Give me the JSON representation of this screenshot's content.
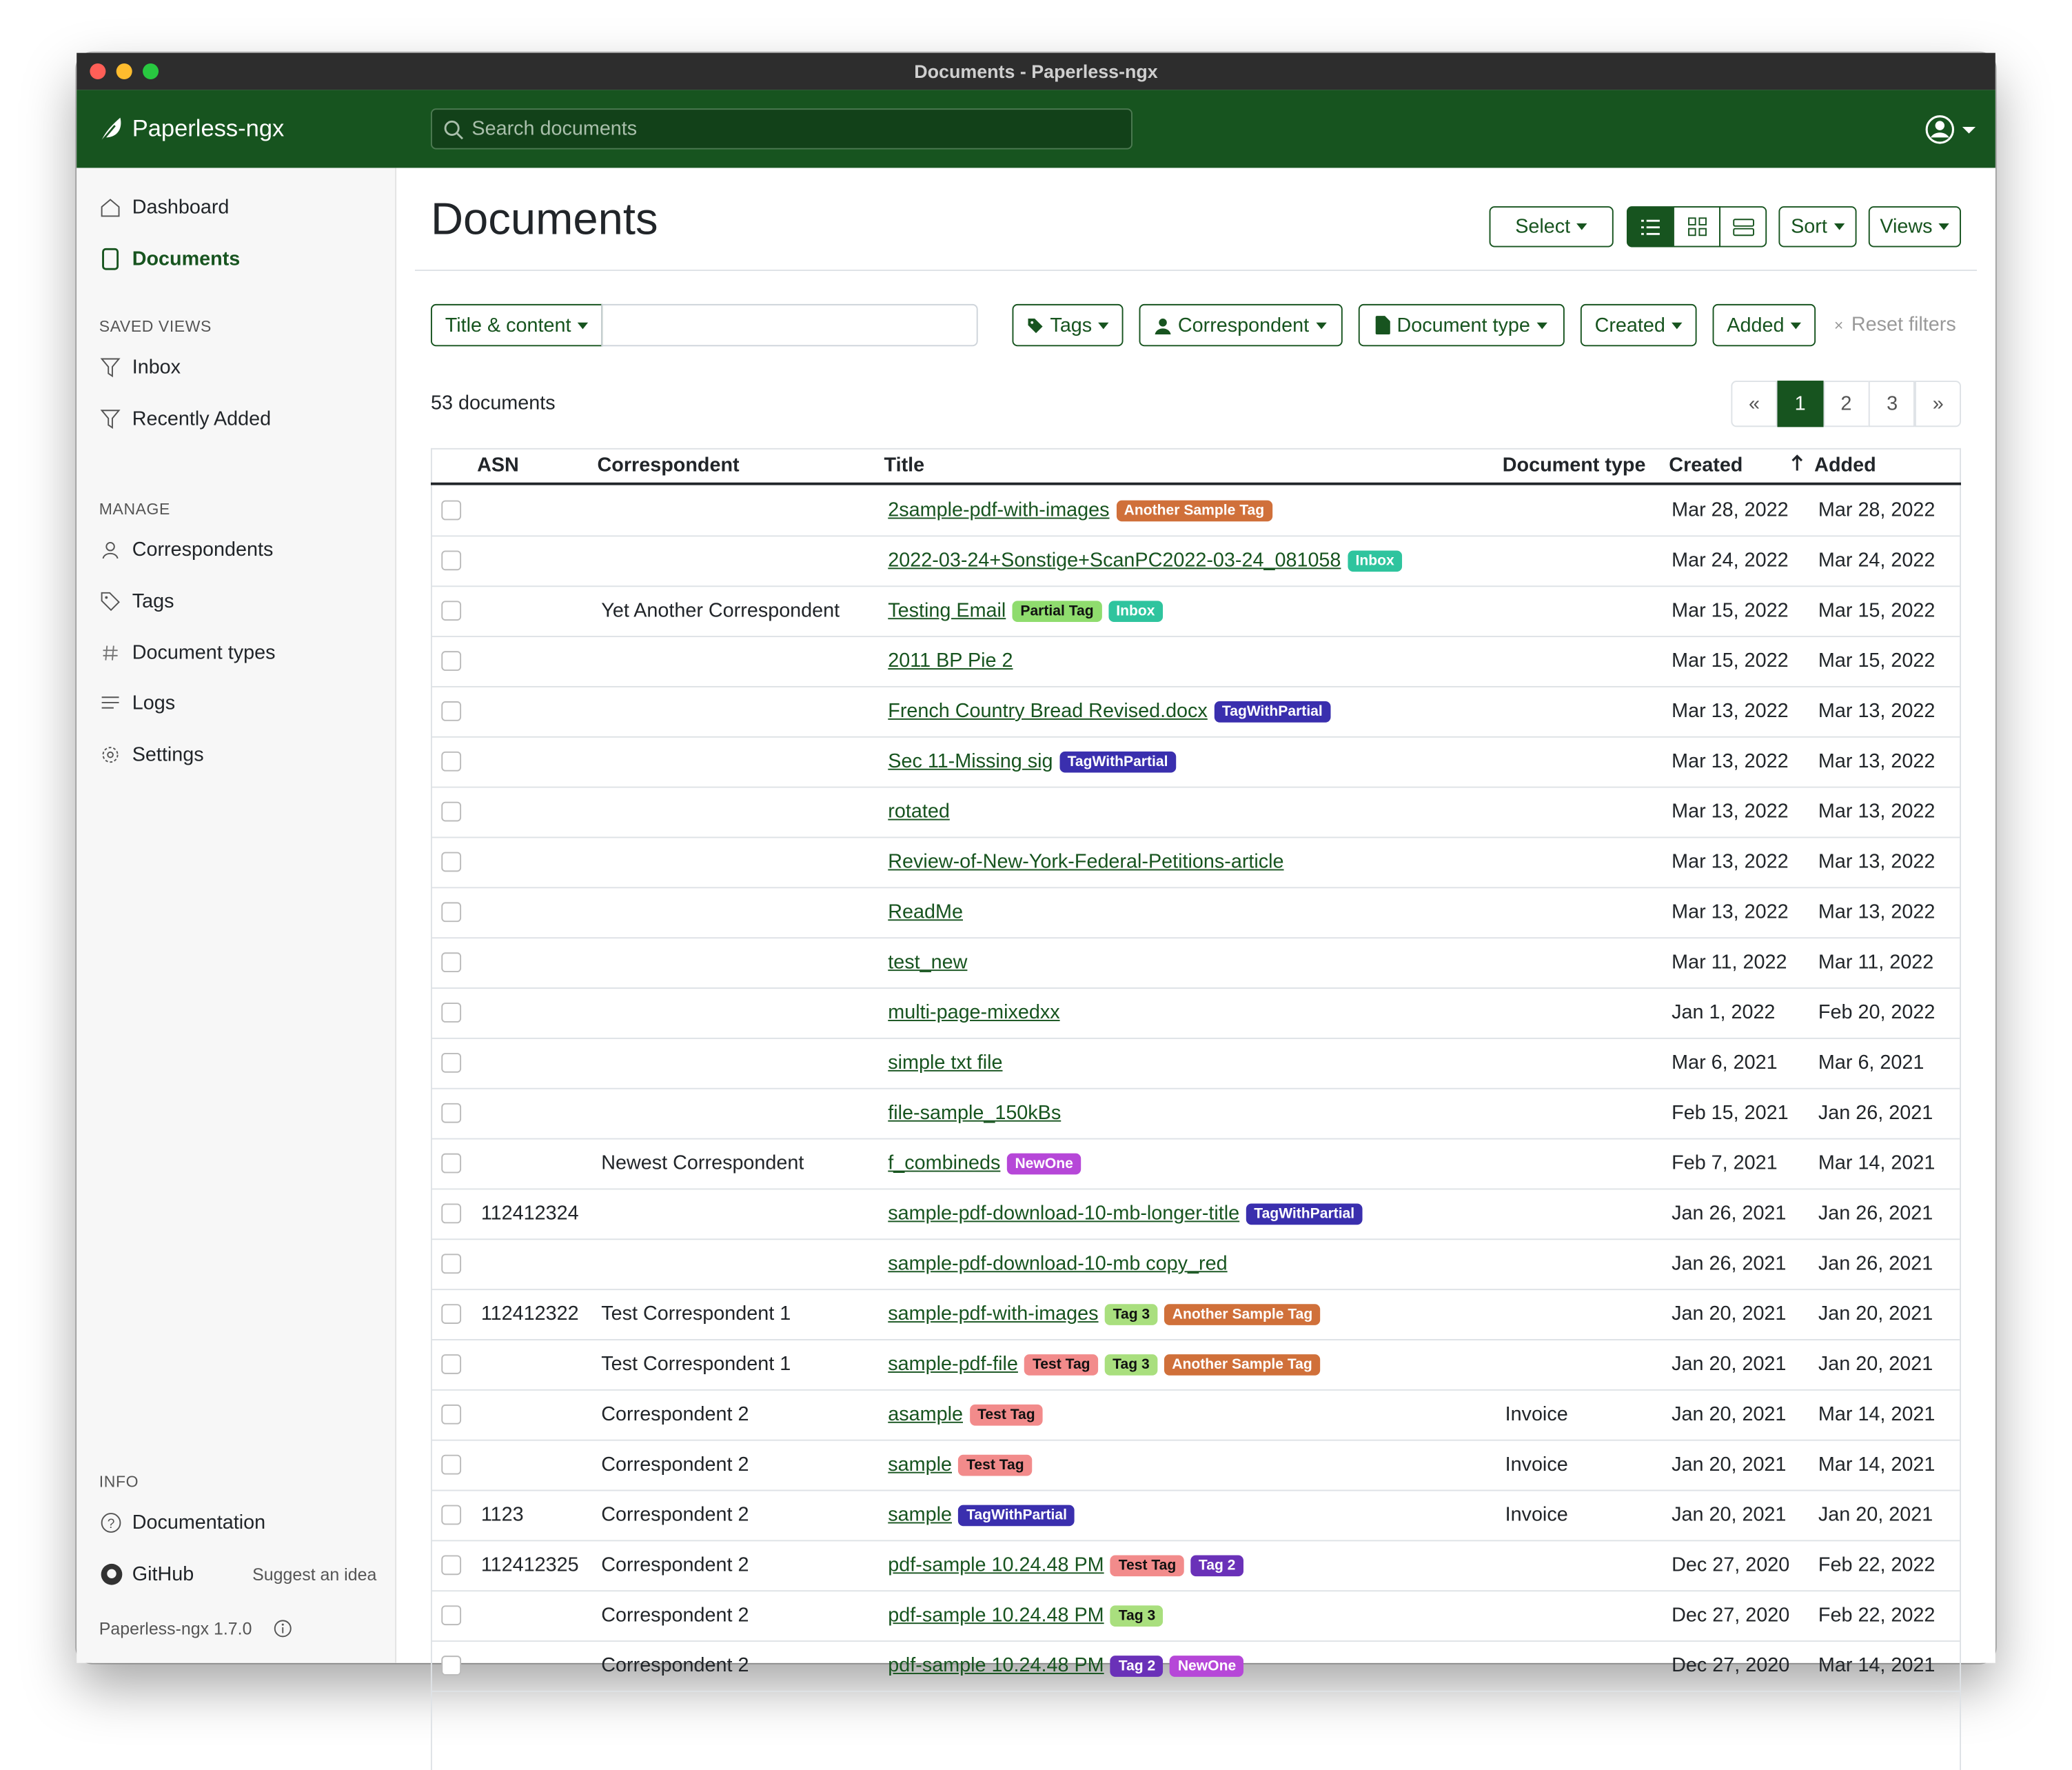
{
  "window_title": "Documents - Paperless-ngx",
  "header": {
    "brand": "Paperless-ngx",
    "search_placeholder": "Search documents"
  },
  "sidebar": {
    "nav": [
      "Dashboard",
      "Documents"
    ],
    "saved_views_heading": "SAVED VIEWS",
    "saved_views": [
      "Inbox",
      "Recently Added"
    ],
    "manage_heading": "MANAGE",
    "manage": [
      "Correspondents",
      "Tags",
      "Document types",
      "Logs",
      "Settings"
    ],
    "info_heading": "INFO",
    "info": [
      "Documentation",
      "GitHub"
    ],
    "suggest": "Suggest an idea",
    "version": "Paperless-ngx 1.7.0"
  },
  "page": {
    "title": "Documents",
    "select": "Select",
    "sort": "Sort",
    "views": "Views"
  },
  "filters": {
    "text_filter": "Title & content",
    "dropdowns": [
      "Tags",
      "Correspondent",
      "Document type",
      "Created",
      "Added"
    ],
    "reset": "Reset filters"
  },
  "count": "53 documents",
  "pagination": [
    "«",
    "1",
    "2",
    "3",
    "»"
  ],
  "tag_colors": {
    "Another Sample Tag": "#d0703a",
    "Inbox": "#2fc49e",
    "Partial Tag": "#8fdc6e",
    "TagWithPartial": "#3a2fae",
    "NewOne": "#b647d8",
    "Tag 3": "#a9df7e",
    "Test Tag": "#f28b8b",
    "Tag 2": "#6a31b8"
  },
  "table": {
    "columns": [
      "ASN",
      "Correspondent",
      "Title",
      "Document type",
      "Created",
      "Added"
    ],
    "rows": [
      {
        "title": "2sample-pdf-with-images",
        "tags": [
          "Another Sample Tag"
        ],
        "created": "Mar 28, 2022",
        "added": "Mar 28, 2022"
      },
      {
        "title": "2022-03-24+Sonstige+ScanPC2022-03-24_081058",
        "tags": [
          "Inbox"
        ],
        "created": "Mar 24, 2022",
        "added": "Mar 24, 2022"
      },
      {
        "correspondent": "Yet Another Correspondent",
        "title": "Testing Email",
        "tags": [
          "Partial Tag",
          "Inbox"
        ],
        "created": "Mar 15, 2022",
        "added": "Mar 15, 2022"
      },
      {
        "title": "2011 BP Pie 2",
        "created": "Mar 15, 2022",
        "added": "Mar 15, 2022"
      },
      {
        "title": "French Country Bread Revised.docx",
        "tags": [
          "TagWithPartial"
        ],
        "created": "Mar 13, 2022",
        "added": "Mar 13, 2022"
      },
      {
        "title": "Sec 11-Missing sig",
        "tags": [
          "TagWithPartial"
        ],
        "created": "Mar 13, 2022",
        "added": "Mar 13, 2022"
      },
      {
        "title": "rotated",
        "created": "Mar 13, 2022",
        "added": "Mar 13, 2022"
      },
      {
        "title": "Review-of-New-York-Federal-Petitions-article",
        "created": "Mar 13, 2022",
        "added": "Mar 13, 2022"
      },
      {
        "title": "ReadMe",
        "created": "Mar 13, 2022",
        "added": "Mar 13, 2022"
      },
      {
        "title": "test_new",
        "created": "Mar 11, 2022",
        "added": "Mar 11, 2022"
      },
      {
        "title": "multi-page-mixedxx",
        "created": "Jan 1, 2022",
        "added": "Feb 20, 2022"
      },
      {
        "title": "simple txt file",
        "created": "Mar 6, 2021",
        "added": "Mar 6, 2021"
      },
      {
        "title": "file-sample_150kBs",
        "created": "Feb 15, 2021",
        "added": "Jan 26, 2021"
      },
      {
        "correspondent": "Newest Correspondent",
        "title": "f_combineds",
        "tags": [
          "NewOne"
        ],
        "created": "Feb 7, 2021",
        "added": "Mar 14, 2021"
      },
      {
        "asn": "112412324",
        "title": "sample-pdf-download-10-mb-longer-title",
        "tags": [
          "TagWithPartial"
        ],
        "created": "Jan 26, 2021",
        "added": "Jan 26, 2021"
      },
      {
        "title": "sample-pdf-download-10-mb copy_red",
        "created": "Jan 26, 2021",
        "added": "Jan 26, 2021"
      },
      {
        "asn": "112412322",
        "correspondent": "Test Correspondent 1",
        "title": "sample-pdf-with-images",
        "tags": [
          "Tag 3",
          "Another Sample Tag"
        ],
        "created": "Jan 20, 2021",
        "added": "Jan 20, 2021"
      },
      {
        "correspondent": "Test Correspondent 1",
        "title": "sample-pdf-file",
        "tags": [
          "Test Tag",
          "Tag 3",
          "Another Sample Tag"
        ],
        "created": "Jan 20, 2021",
        "added": "Jan 20, 2021"
      },
      {
        "correspondent": "Correspondent 2",
        "title": "asample",
        "tags": [
          "Test Tag"
        ],
        "document_type": "Invoice",
        "created": "Jan 20, 2021",
        "added": "Mar 14, 2021"
      },
      {
        "correspondent": "Correspondent 2",
        "title": "sample",
        "tags": [
          "Test Tag"
        ],
        "document_type": "Invoice",
        "created": "Jan 20, 2021",
        "added": "Mar 14, 2021"
      },
      {
        "asn": "1123",
        "correspondent": "Correspondent 2",
        "title": "sample",
        "tags": [
          "TagWithPartial"
        ],
        "document_type": "Invoice",
        "created": "Jan 20, 2021",
        "added": "Jan 20, 2021"
      },
      {
        "asn": "112412325",
        "correspondent": "Correspondent 2",
        "title": "pdf-sample 10.24.48 PM",
        "tags": [
          "Test Tag",
          "Tag 2"
        ],
        "created": "Dec 27, 2020",
        "added": "Feb 22, 2022"
      },
      {
        "correspondent": "Correspondent 2",
        "title": "pdf-sample 10.24.48 PM",
        "tags": [
          "Tag 3"
        ],
        "created": "Dec 27, 2020",
        "added": "Feb 22, 2022"
      },
      {
        "correspondent": "Correspondent 2",
        "title": "pdf-sample 10.24.48 PM",
        "tags": [
          "Tag 2",
          "NewOne"
        ],
        "created": "Dec 27, 2020",
        "added": "Mar 14, 2021"
      }
    ]
  }
}
